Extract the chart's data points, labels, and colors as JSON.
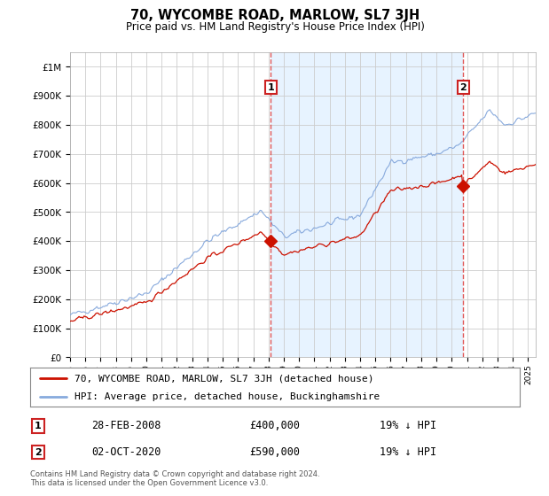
{
  "title": "70, WYCOMBE ROAD, MARLOW, SL7 3JH",
  "subtitle": "Price paid vs. HM Land Registry's House Price Index (HPI)",
  "background_color": "#ffffff",
  "plot_bg_color": "#ffffff",
  "shade_color": "#ddeeff",
  "sale1_date": "28-FEB-2008",
  "sale1_price": 400000,
  "sale1_year": 2008.15,
  "sale1_label": "1",
  "sale1_pct": "19% ↓ HPI",
  "sale2_date": "02-OCT-2020",
  "sale2_price": 590000,
  "sale2_year": 2020.75,
  "sale2_label": "2",
  "sale2_pct": "19% ↓ HPI",
  "legend_property": "70, WYCOMBE ROAD, MARLOW, SL7 3JH (detached house)",
  "legend_hpi": "HPI: Average price, detached house, Buckinghamshire",
  "footer": "Contains HM Land Registry data © Crown copyright and database right 2024.\nThis data is licensed under the Open Government Licence v3.0.",
  "hpi_color": "#88aadd",
  "price_color": "#cc1100",
  "ylim_min": 0,
  "ylim_max": 1050000,
  "xmin": 1995.0,
  "xmax": 2025.5,
  "grid_color": "#cccccc",
  "vline_color": "#dd4444",
  "box_edge_color": "#cc2222"
}
